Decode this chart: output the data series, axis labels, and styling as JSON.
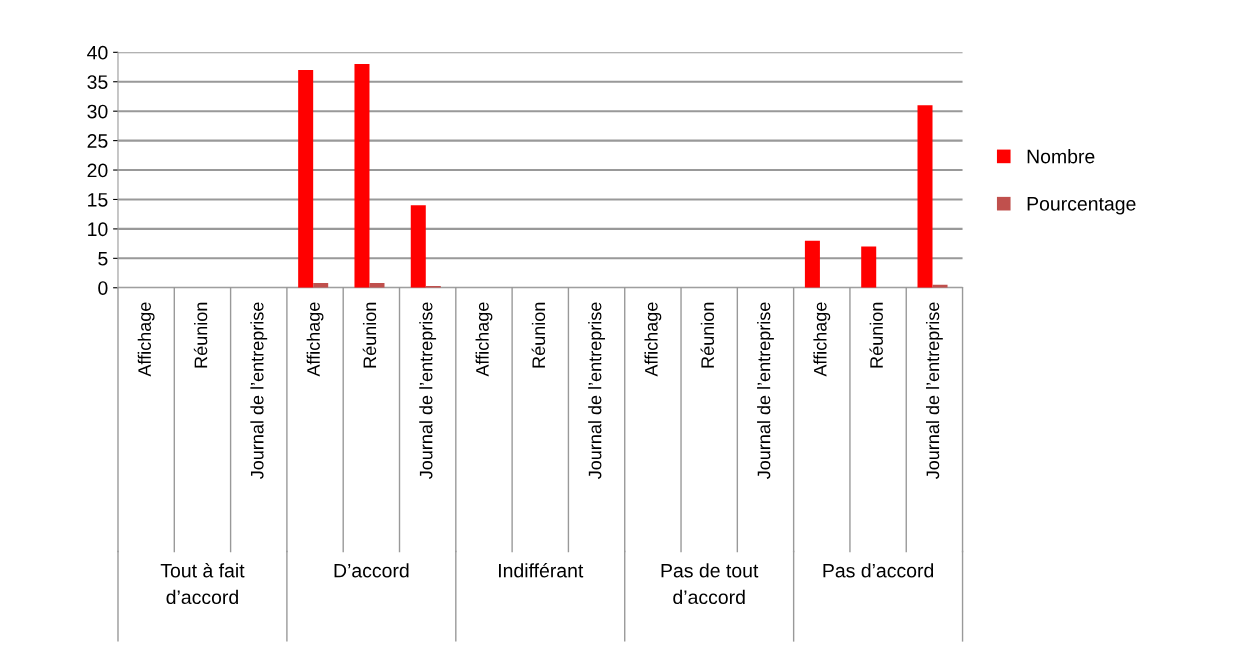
{
  "chart_data": {
    "type": "bar",
    "categories": [
      "Affichage",
      "Réunion",
      "Journal de l’entreprise",
      "Affichage",
      "Réunion",
      "Journal de l’entreprise",
      "Affichage",
      "Réunion",
      "Journal de l’entreprise",
      "Affichage",
      "Réunion",
      "Journal de l’entreprise",
      "Affichage",
      "Réunion",
      "Journal de l’entreprise"
    ],
    "series": [
      {
        "name": "Nombre",
        "color": "#ff0000",
        "values": [
          0,
          0,
          0,
          37,
          38,
          14,
          0,
          0,
          0,
          0,
          0,
          0,
          8,
          7,
          31
        ]
      },
      {
        "name": "Pourcentage",
        "color": "#c0504d",
        "values": [
          0,
          0,
          0,
          0.8,
          0.8,
          0.3,
          0,
          0,
          0,
          0,
          0,
          0,
          null,
          null,
          0.5
        ]
      }
    ],
    "annotations": [
      "Tout à fait\nd’accord",
      "D’accord",
      "Indifférant",
      "Pas de tout\nd’accord",
      "Pas d’accord"
    ],
    "ylim": [
      0,
      40
    ],
    "yticks": [
      0,
      5,
      10,
      15,
      20,
      25,
      30,
      35,
      40
    ],
    "grid": "y",
    "legend": "right"
  }
}
